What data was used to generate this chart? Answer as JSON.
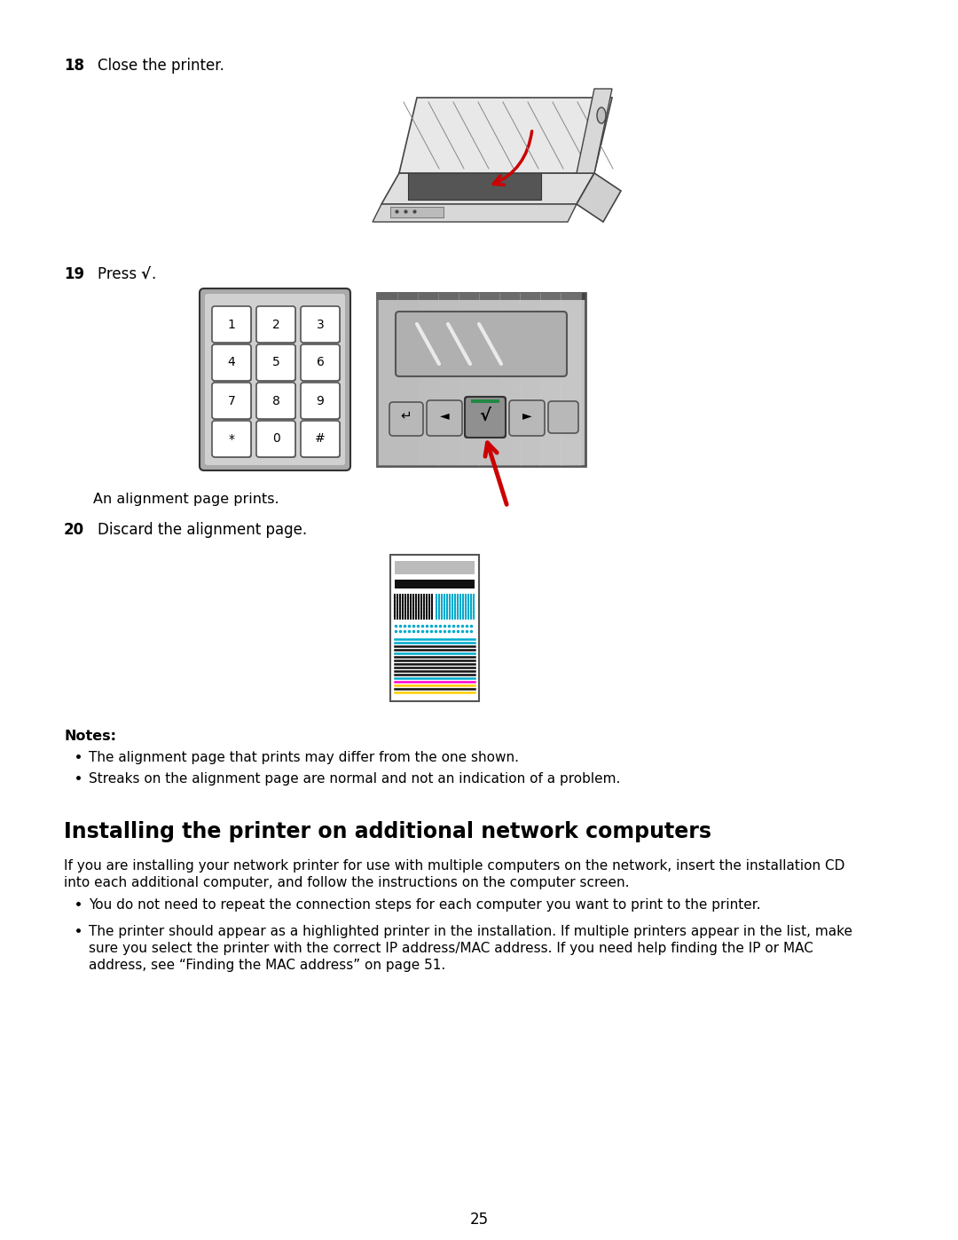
{
  "bg_color": "#ffffff",
  "page_num": "25",
  "step18_label": "18",
  "step18_text": "Close the printer.",
  "step19_label": "19",
  "step19_text": "Press √.",
  "align_note": "An alignment page prints.",
  "step20_label": "20",
  "step20_text": "Discard the alignment page.",
  "notes_header": "Notes:",
  "note1": "The alignment page that prints may differ from the one shown.",
  "note2": "Streaks on the alignment page are normal and not an indication of a problem.",
  "section_title": "Installing the printer on additional network computers",
  "body_text1": "If you are installing your network printer for use with multiple computers on the network, insert the installation CD",
  "body_text2": "into each additional computer, and follow the instructions on the computer screen.",
  "bullet1": "You do not need to repeat the connection steps for each computer you want to print to the printer.",
  "bullet2a": "The printer should appear as a highlighted printer in the installation. If multiple printers appear in the list, make",
  "bullet2b": "sure you select the printer with the correct IP address/MAC address. If you need help finding the IP or MAC",
  "bullet2c": "address, see “Finding the MAC address” on page 51."
}
